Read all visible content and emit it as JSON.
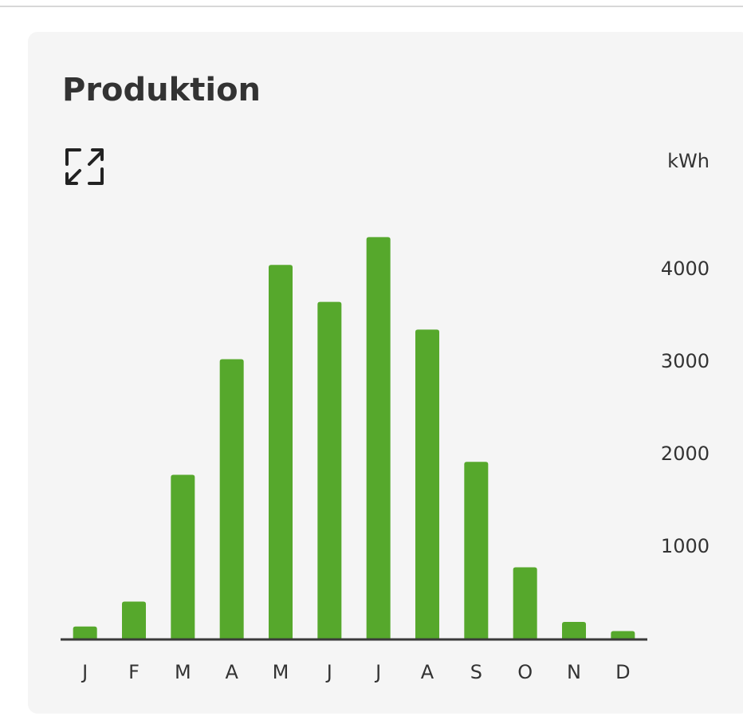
{
  "chart_data": {
    "type": "bar",
    "title": "Produktion",
    "y_label": "kWh",
    "categories": [
      "J",
      "F",
      "M",
      "A",
      "M",
      "J",
      "J",
      "A",
      "S",
      "O",
      "N",
      "D"
    ],
    "values": [
      140,
      410,
      1780,
      3030,
      4050,
      3650,
      4350,
      3350,
      1920,
      780,
      190,
      90
    ],
    "color": "#56a82c",
    "ylim": [
      0,
      5000
    ],
    "yticks": [
      1000,
      2000,
      3000,
      4000
    ],
    "grid": false
  }
}
